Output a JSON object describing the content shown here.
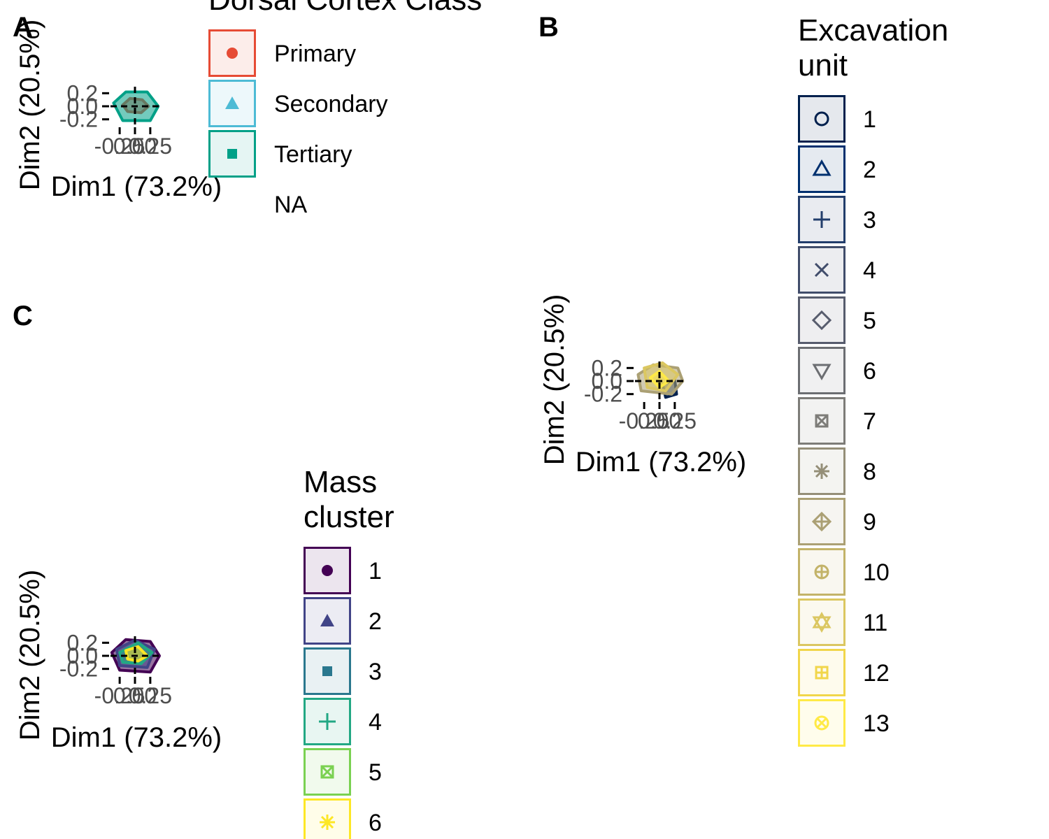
{
  "chart_data": [
    {
      "panel": "A",
      "type": "scatter",
      "title": "",
      "xlabel": "Dim1 (73.2%)",
      "ylabel": "Dim2 (20.5%)",
      "x_ticks": [
        "-0.25",
        "0.00",
        "0.25"
      ],
      "y_ticks": [
        "-0.2",
        "0.0",
        "0.2"
      ],
      "xlim": [
        -0.4,
        0.4
      ],
      "ylim": [
        -0.3,
        0.3
      ],
      "legend": {
        "title": "Dorsal Cortex Class",
        "placement": "right",
        "entries": [
          {
            "label": "Primary",
            "color": "#e64b35",
            "shape": "circle"
          },
          {
            "label": "Secondary",
            "color": "#4dbbd5",
            "shape": "triangle"
          },
          {
            "label": "Tertiary",
            "color": "#00a087",
            "shape": "square"
          },
          {
            "label": "NA",
            "color": "",
            "shape": "none"
          }
        ]
      },
      "hulls": [
        {
          "name": "Primary",
          "color": "#e64b35",
          "points": [
            [
              -0.2,
              0.02
            ],
            [
              -0.08,
              0.12
            ],
            [
              0.12,
              0.1
            ],
            [
              0.22,
              0.0
            ],
            [
              0.1,
              -0.1
            ],
            [
              -0.12,
              -0.08
            ]
          ]
        },
        {
          "name": "Tertiary",
          "color": "#00a087",
          "points": [
            [
              -0.35,
              0.05
            ],
            [
              -0.15,
              0.22
            ],
            [
              0.2,
              0.22
            ],
            [
              0.38,
              0.0
            ],
            [
              0.25,
              -0.22
            ],
            [
              -0.2,
              -0.22
            ]
          ]
        }
      ]
    },
    {
      "panel": "B",
      "type": "scatter",
      "title": "",
      "xlabel": "Dim1 (73.2%)",
      "ylabel": "Dim2 (20.5%)",
      "x_ticks": [
        "-0.25",
        "0.00",
        "0.25"
      ],
      "y_ticks": [
        "-0.2",
        "0.0",
        "0.2"
      ],
      "xlim": [
        -0.4,
        0.4
      ],
      "ylim": [
        -0.3,
        0.3
      ],
      "legend": {
        "title": [
          "Excavation",
          "unit"
        ],
        "placement": "right",
        "entries": [
          {
            "label": "1",
            "color": "#00204d",
            "shape": "open-circle"
          },
          {
            "label": "2",
            "color": "#00306f",
            "shape": "open-triangle"
          },
          {
            "label": "3",
            "color": "#233e6c",
            "shape": "plus"
          },
          {
            "label": "4",
            "color": "#414d6b",
            "shape": "cross"
          },
          {
            "label": "5",
            "color": "#575c6d",
            "shape": "diamond"
          },
          {
            "label": "6",
            "color": "#6c6e72",
            "shape": "down-triangle"
          },
          {
            "label": "7",
            "color": "#7d7c78",
            "shape": "square-cross"
          },
          {
            "label": "8",
            "color": "#958f78",
            "shape": "asterisk"
          },
          {
            "label": "9",
            "color": "#aba074",
            "shape": "diamond-plus"
          },
          {
            "label": "10",
            "color": "#c3b369",
            "shape": "circle-plus"
          },
          {
            "label": "11",
            "color": "#dbc761",
            "shape": "star-of-david"
          },
          {
            "label": "12",
            "color": "#f1d64b",
            "shape": "square-plus"
          },
          {
            "label": "13",
            "color": "#ffea46",
            "shape": "circle-cross"
          }
        ]
      },
      "hulls": [
        {
          "name": "1",
          "color": "#00204d",
          "points": [
            [
              0.05,
              -0.05
            ],
            [
              0.25,
              0.02
            ],
            [
              0.28,
              -0.2
            ],
            [
              0.1,
              -0.25
            ]
          ]
        },
        {
          "name": "9",
          "color": "#aba074",
          "points": [
            [
              -0.35,
              0.1
            ],
            [
              -0.1,
              0.25
            ],
            [
              0.3,
              0.2
            ],
            [
              0.38,
              0.0
            ],
            [
              0.2,
              -0.2
            ],
            [
              -0.3,
              -0.15
            ]
          ]
        },
        {
          "name": "11",
          "color": "#dbc761",
          "points": [
            [
              -0.25,
              0.2
            ],
            [
              0.05,
              0.28
            ],
            [
              0.3,
              0.1
            ],
            [
              0.1,
              -0.15
            ],
            [
              -0.2,
              -0.1
            ]
          ]
        },
        {
          "name": "13",
          "color": "#ffea46",
          "points": [
            [
              -0.15,
              0.05
            ],
            [
              0.0,
              0.15
            ],
            [
              0.15,
              0.0
            ],
            [
              0.0,
              -0.1
            ]
          ]
        }
      ]
    },
    {
      "panel": "C",
      "type": "scatter",
      "title": "",
      "xlabel": "Dim1 (73.2%)",
      "ylabel": "Dim2 (20.5%)",
      "x_ticks": [
        "-0.25",
        "0.00",
        "0.25"
      ],
      "y_ticks": [
        "-0.2",
        "0.0",
        "0.2"
      ],
      "xlim": [
        -0.4,
        0.4
      ],
      "ylim": [
        -0.3,
        0.3
      ],
      "legend": {
        "title": [
          "Mass",
          "cluster"
        ],
        "placement": "right",
        "entries": [
          {
            "label": "1",
            "color": "#440154",
            "shape": "circle"
          },
          {
            "label": "2",
            "color": "#414487",
            "shape": "triangle"
          },
          {
            "label": "3",
            "color": "#2a788e",
            "shape": "square"
          },
          {
            "label": "4",
            "color": "#22a884",
            "shape": "plus"
          },
          {
            "label": "5",
            "color": "#7ad151",
            "shape": "square-cross"
          },
          {
            "label": "6",
            "color": "#fde725",
            "shape": "asterisk"
          }
        ]
      },
      "hulls": [
        {
          "name": "1",
          "color": "#440154",
          "points": [
            [
              -0.38,
              0.05
            ],
            [
              -0.15,
              0.25
            ],
            [
              0.25,
              0.22
            ],
            [
              0.4,
              0.0
            ],
            [
              0.25,
              -0.25
            ],
            [
              -0.25,
              -0.22
            ]
          ]
        },
        {
          "name": "2",
          "color": "#414487",
          "points": [
            [
              -0.3,
              0.1
            ],
            [
              0.0,
              0.24
            ],
            [
              0.32,
              0.1
            ],
            [
              0.2,
              -0.18
            ],
            [
              -0.25,
              -0.15
            ]
          ]
        },
        {
          "name": "4",
          "color": "#22a884",
          "points": [
            [
              -0.25,
              0.05
            ],
            [
              0.05,
              0.2
            ],
            [
              0.28,
              0.05
            ],
            [
              0.1,
              -0.12
            ],
            [
              -0.2,
              -0.1
            ]
          ]
        },
        {
          "name": "6",
          "color": "#fde725",
          "points": [
            [
              -0.15,
              0.08
            ],
            [
              0.05,
              0.14
            ],
            [
              0.2,
              0.0
            ],
            [
              0.05,
              -0.08
            ],
            [
              -0.12,
              -0.05
            ]
          ]
        }
      ]
    }
  ]
}
